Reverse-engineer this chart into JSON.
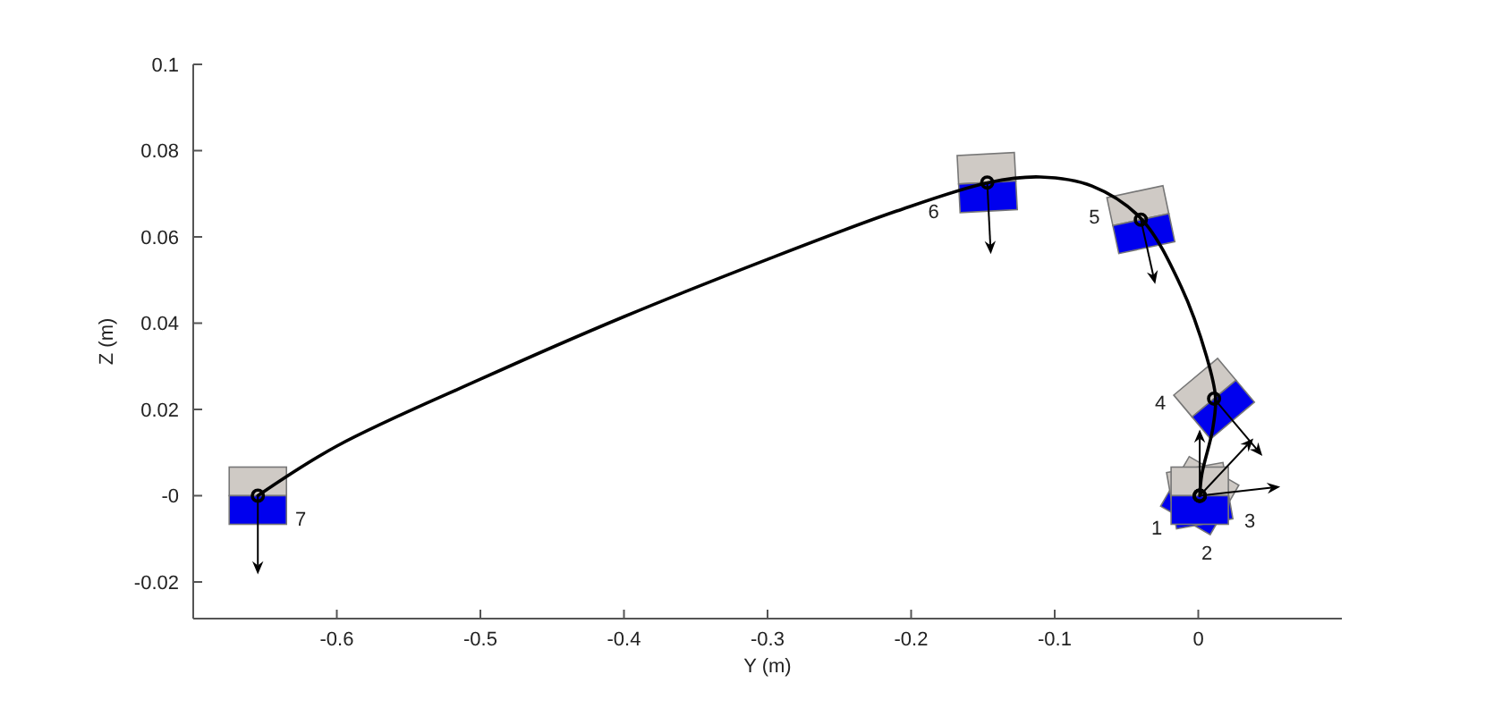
{
  "chart_data": {
    "type": "line",
    "xlabel": "Y (m)",
    "ylabel": "Z (m)",
    "xlim": [
      -0.7,
      0.1
    ],
    "xticks": [
      -0.6,
      -0.5,
      -0.4,
      -0.3,
      -0.2,
      -0.1,
      0
    ],
    "ylim": [
      -0.0285,
      0.1
    ],
    "yticks": [
      -0.02,
      {
        "value": 0,
        "label": "-0"
      },
      0.02,
      0.04,
      0.06,
      0.08,
      0.1
    ],
    "grid": false,
    "series": [
      {
        "color": "#000000",
        "marker": "none",
        "line_style": "solid",
        "x": [
          -0.655,
          -0.6,
          -0.5,
          -0.4,
          -0.3,
          -0.21,
          -0.146,
          -0.11,
          -0.074,
          -0.04,
          -0.012,
          0.006,
          0.012,
          0.01,
          0.0025,
          0.001
        ],
        "values": [
          0,
          0.0115,
          0.027,
          0.0415,
          0.0548,
          0.066,
          0.0726,
          0.0739,
          0.0718,
          0.0643,
          0.0485,
          0.032,
          0.0228,
          0.0154,
          0.005,
          0
        ]
      },
      {
        "type": "scatter",
        "color": "#000000",
        "marker": "circle",
        "x": [
          0.001,
          0.001,
          0.001,
          0.011,
          -0.04,
          -0.147,
          -0.655
        ],
        "values": [
          0,
          0,
          0,
          0.0225,
          0.064,
          0.0726,
          0
        ]
      }
    ],
    "annotations": [
      {
        "text": "1",
        "x": 0.001,
        "y": 0
      },
      {
        "text": "2",
        "x": 0.001,
        "y": 0
      },
      {
        "text": "3",
        "x": 0.001,
        "y": 0
      },
      {
        "text": "4",
        "x": 0.011,
        "y": 0.0225
      },
      {
        "text": "5",
        "x": -0.04,
        "y": 0.064
      },
      {
        "text": "6",
        "x": -0.147,
        "y": 0.0726
      },
      {
        "text": "7",
        "x": -0.655,
        "y": 0
      }
    ]
  }
}
